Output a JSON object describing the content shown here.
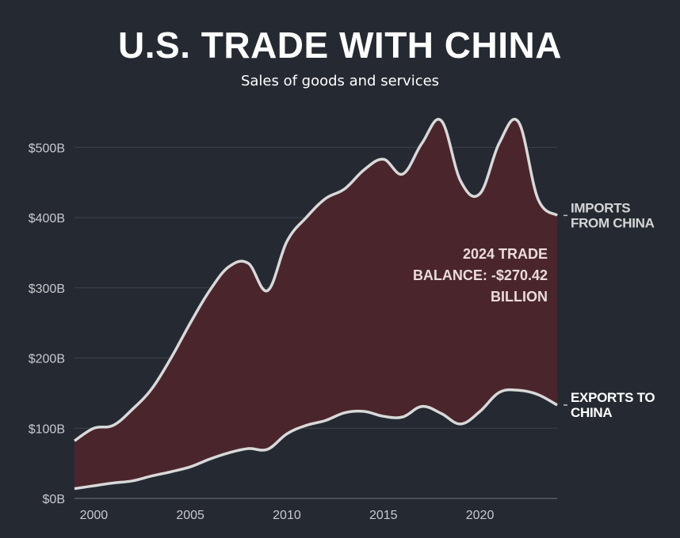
{
  "chart_data": {
    "type": "area",
    "title": "U.S. TRADE WITH CHINA",
    "subtitle": "Sales of goods and services",
    "xlabel": "",
    "ylabel": "",
    "x": [
      1999,
      2000,
      2001,
      2002,
      2003,
      2004,
      2005,
      2006,
      2007,
      2008,
      2009,
      2010,
      2011,
      2012,
      2013,
      2014,
      2015,
      2016,
      2017,
      2018,
      2019,
      2020,
      2021,
      2022,
      2023,
      2024
    ],
    "series": [
      {
        "name": "IMPORTS FROM CHINA",
        "values": [
          82,
          100,
          104,
          127,
          156,
          200,
          250,
          296,
          330,
          335,
          296,
          366,
          400,
          427,
          441,
          468,
          483,
          462,
          506,
          538,
          452,
          434,
          506,
          536,
          427,
          403
        ]
      },
      {
        "name": "EXPORTS TO CHINA",
        "values": [
          14,
          18,
          22,
          25,
          32,
          38,
          45,
          56,
          65,
          71,
          70,
          92,
          104,
          111,
          122,
          124,
          117,
          116,
          131,
          121,
          106,
          124,
          151,
          154,
          148,
          133
        ]
      }
    ],
    "series_labels": [
      [
        "IMPORTS",
        "FROM CHINA"
      ],
      [
        "EXPORTS TO",
        "CHINA"
      ]
    ],
    "annotation_lines": [
      "2024 TRADE",
      "BALANCE: -$270.42",
      "BILLION"
    ],
    "ylim": [
      0,
      560
    ],
    "xlim": [
      1999,
      2024
    ],
    "y_ticks": [
      0,
      100,
      200,
      300,
      400,
      500
    ],
    "y_tick_labels": [
      "$0B",
      "$100B",
      "$200B",
      "$300B",
      "$400B",
      "$500B"
    ],
    "x_ticks": [
      2000,
      2005,
      2010,
      2015,
      2020
    ],
    "x_tick_labels": [
      "2000",
      "2005",
      "2010",
      "2015",
      "2020"
    ],
    "grid": true,
    "legend": "direct labels at right",
    "colors": {
      "background": "#252a32",
      "fill_between": "#4a262c",
      "line": "#d9d9d9",
      "grid": "#3f434a"
    }
  }
}
